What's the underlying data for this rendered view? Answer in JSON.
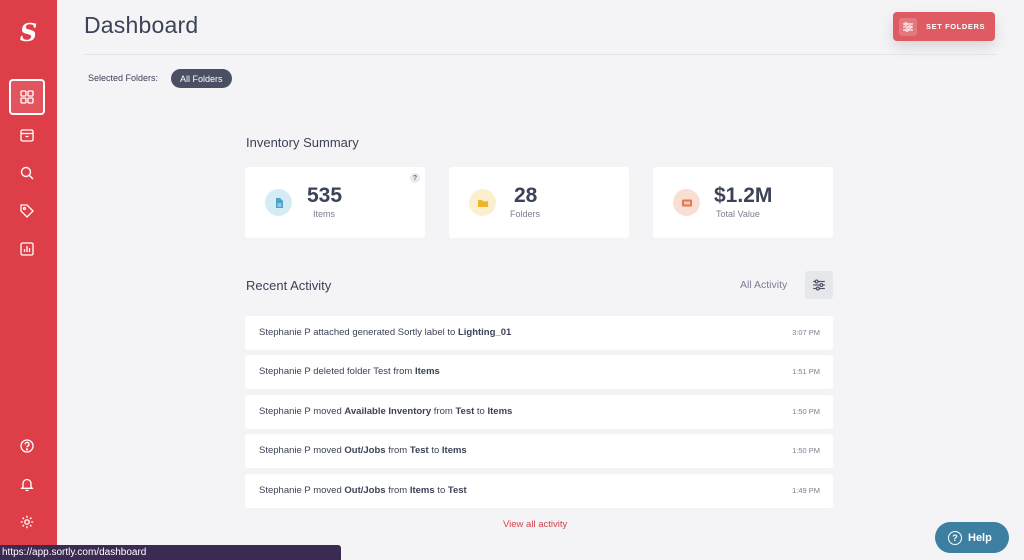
{
  "sidebar": {
    "logo": "S",
    "nav": [
      {
        "name": "dashboard",
        "icon": "grid-icon",
        "active": true
      },
      {
        "name": "items",
        "icon": "box-icon",
        "active": false
      },
      {
        "name": "search",
        "icon": "search-icon",
        "active": false
      },
      {
        "name": "tags",
        "icon": "tag-icon",
        "active": false
      },
      {
        "name": "reports",
        "icon": "chart-icon",
        "active": false
      }
    ],
    "bottom": [
      {
        "name": "help",
        "icon": "question-icon"
      },
      {
        "name": "notifications",
        "icon": "bell-icon"
      },
      {
        "name": "settings",
        "icon": "gear-icon"
      }
    ]
  },
  "header": {
    "title": "Dashboard",
    "set_folders_label": "SET FOLDERS",
    "selected_folders_label": "Selected Folders:",
    "selected_folder_chip": "All Folders"
  },
  "summary": {
    "title": "Inventory Summary",
    "help_mark": "?",
    "cards": [
      {
        "value": "535",
        "label": "Items",
        "icon": "file-icon",
        "color": "#4aa3c9",
        "bg": "#d6ecf4"
      },
      {
        "value": "28",
        "label": "Folders",
        "icon": "folder-icon",
        "color": "#f0b42c",
        "bg": "#fcefcf"
      },
      {
        "value": "$1.2M",
        "label": "Total Value",
        "icon": "cash-icon",
        "color": "#e6774e",
        "bg": "#f9ded3"
      }
    ]
  },
  "activity": {
    "title": "Recent Activity",
    "filter_label": "All Activity",
    "view_all": "View all activity",
    "rows": [
      {
        "parts": [
          [
            "Stephanie P attached generated Sortly label to ",
            false
          ],
          [
            "Lighting_01",
            true
          ]
        ],
        "time": "3:07 PM"
      },
      {
        "parts": [
          [
            "Stephanie P deleted folder Test from ",
            false
          ],
          [
            "Items",
            true
          ]
        ],
        "time": "1:51 PM"
      },
      {
        "parts": [
          [
            "Stephanie P moved ",
            false
          ],
          [
            "Available Inventory",
            true
          ],
          [
            " from ",
            false
          ],
          [
            "Test",
            true
          ],
          [
            " to ",
            false
          ],
          [
            "Items",
            true
          ]
        ],
        "time": "1:50 PM"
      },
      {
        "parts": [
          [
            "Stephanie P moved ",
            false
          ],
          [
            "Out/Jobs",
            true
          ],
          [
            " from ",
            false
          ],
          [
            "Test",
            true
          ],
          [
            " to ",
            false
          ],
          [
            "Items",
            true
          ]
        ],
        "time": "1:50 PM"
      },
      {
        "parts": [
          [
            "Stephanie P moved ",
            false
          ],
          [
            "Out/Jobs",
            true
          ],
          [
            " from ",
            false
          ],
          [
            "Items",
            true
          ],
          [
            " to ",
            false
          ],
          [
            "Test",
            true
          ]
        ],
        "time": "1:49 PM"
      }
    ]
  },
  "status_url": "https://app.sortly.com/dashboard",
  "help_button": "Help",
  "colors": {
    "brand": "#de3e48",
    "accent_button": "#de5b63",
    "help": "#3d7fa0"
  }
}
